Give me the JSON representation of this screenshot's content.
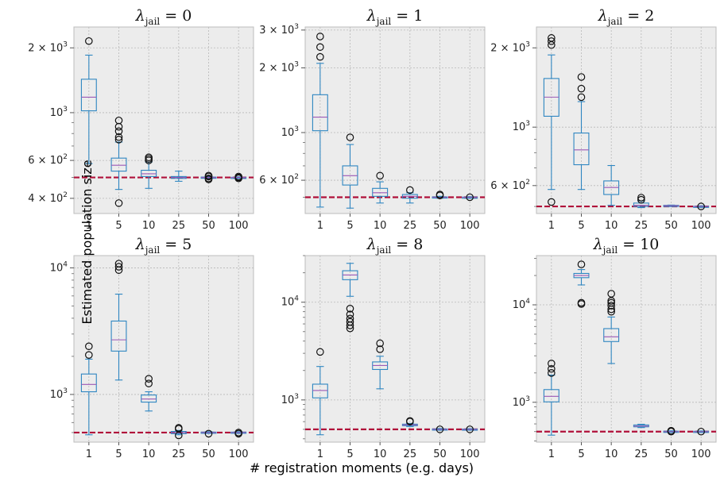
{
  "figure": {
    "ylabel": "Estimated population size",
    "xlabel": "# registration moments (e.g. days)"
  },
  "chart_data": [
    {
      "type": "box",
      "title": "λ_jail = 0",
      "title_main": "λ",
      "title_sub": "jail",
      "title_rest": " = 0",
      "categories": [
        "1",
        "5",
        "10",
        "25",
        "50",
        "100"
      ],
      "yscale": "log",
      "ylim": [
        340,
        2500
      ],
      "yticks": [
        {
          "v": 400,
          "m": "4 × 10",
          "e": "2"
        },
        {
          "v": 600,
          "m": "6 × 10",
          "e": "2"
        },
        {
          "v": 1000,
          "m": "10",
          "e": "3"
        },
        {
          "v": 2000,
          "m": "2 × 10",
          "e": "3"
        }
      ],
      "reference_line": 500,
      "boxes": [
        {
          "q1": 1020,
          "median": 1180,
          "q3": 1430,
          "wlo": 580,
          "whi": 1850,
          "fliers": [
            2150
          ]
        },
        {
          "q1": 535,
          "median": 570,
          "q3": 615,
          "wlo": 440,
          "whi": 730,
          "fliers": [
            380,
            750,
            770,
            820,
            860,
            920
          ]
        },
        {
          "q1": 505,
          "median": 520,
          "q3": 540,
          "wlo": 445,
          "whi": 590,
          "fliers": [
            600,
            610,
            620
          ]
        },
        {
          "q1": 495,
          "median": 500,
          "q3": 505,
          "wlo": 480,
          "whi": 535,
          "fliers": []
        },
        {
          "q1": 498,
          "median": 500,
          "q3": 502,
          "wlo": 495,
          "whi": 505,
          "fliers": [
            490,
            495,
            505,
            510
          ]
        },
        {
          "q1": 499,
          "median": 500,
          "q3": 501,
          "wlo": 497,
          "whi": 503,
          "fliers": [
            495,
            500,
            505
          ]
        }
      ]
    },
    {
      "type": "box",
      "title": "λ_jail = 1",
      "title_main": "λ",
      "title_sub": "jail",
      "title_rest": " = 1",
      "categories": [
        "1",
        "5",
        "10",
        "25",
        "50",
        "100"
      ],
      "yscale": "log",
      "ylim": [
        420,
        3100
      ],
      "yticks": [
        {
          "v": 600,
          "m": "6 × 10",
          "e": "2"
        },
        {
          "v": 1000,
          "m": "10",
          "e": "3"
        },
        {
          "v": 2000,
          "m": "2 × 10",
          "e": "3"
        },
        {
          "v": 3000,
          "m": "3 × 10",
          "e": "3"
        }
      ],
      "reference_line": 500,
      "boxes": [
        {
          "q1": 1020,
          "median": 1180,
          "q3": 1500,
          "wlo": 450,
          "whi": 2100,
          "fliers": [
            2250,
            2500,
            2800
          ]
        },
        {
          "q1": 570,
          "median": 630,
          "q3": 700,
          "wlo": 445,
          "whi": 880,
          "fliers": [
            950
          ]
        },
        {
          "q1": 505,
          "median": 525,
          "q3": 550,
          "wlo": 470,
          "whi": 590,
          "fliers": [
            630
          ]
        },
        {
          "q1": 495,
          "median": 505,
          "q3": 515,
          "wlo": 470,
          "whi": 525,
          "fliers": [
            540
          ]
        },
        {
          "q1": 498,
          "median": 500,
          "q3": 502,
          "wlo": 495,
          "whi": 505,
          "fliers": [
            510,
            515
          ]
        },
        {
          "q1": 499,
          "median": 500,
          "q3": 501,
          "wlo": 497,
          "whi": 503,
          "fliers": [
            500
          ]
        }
      ]
    },
    {
      "type": "box",
      "title": "λ_jail = 2",
      "title_main": "λ",
      "title_sub": "jail",
      "title_rest": " = 2",
      "categories": [
        "1",
        "5",
        "10",
        "25",
        "50",
        "100"
      ],
      "yscale": "log",
      "ylim": [
        470,
        2400
      ],
      "yticks": [
        {
          "v": 600,
          "m": "6 × 10",
          "e": "2"
        },
        {
          "v": 1000,
          "m": "10",
          "e": "3"
        },
        {
          "v": 2000,
          "m": "2 × 10",
          "e": "3"
        }
      ],
      "reference_line": 500,
      "boxes": [
        {
          "q1": 1100,
          "median": 1300,
          "q3": 1530,
          "wlo": 580,
          "whi": 1880,
          "fliers": [
            520,
            2050,
            2120,
            2180
          ]
        },
        {
          "q1": 720,
          "median": 820,
          "q3": 950,
          "wlo": 580,
          "whi": 1250,
          "fliers": [
            1300,
            1400,
            1550
          ]
        },
        {
          "q1": 555,
          "median": 590,
          "q3": 625,
          "wlo": 505,
          "whi": 715,
          "fliers": []
        },
        {
          "q1": 500,
          "median": 505,
          "q3": 515,
          "wlo": 495,
          "whi": 525,
          "fliers": [
            530,
            540
          ]
        },
        {
          "q1": 502,
          "median": 503,
          "q3": 505,
          "wlo": 500,
          "whi": 506,
          "fliers": []
        },
        {
          "q1": 499,
          "median": 500,
          "q3": 501,
          "wlo": 497,
          "whi": 503,
          "fliers": [
            500
          ]
        }
      ]
    },
    {
      "type": "box",
      "title": "λ_jail = 5",
      "title_main": "λ",
      "title_sub": "jail",
      "title_rest": " = 5",
      "categories": [
        "1",
        "5",
        "10",
        "25",
        "50",
        "100"
      ],
      "yscale": "log",
      "ylim": [
        420,
        12500
      ],
      "yticks": [
        {
          "v": 1000,
          "m": "10",
          "e": "3"
        },
        {
          "v": 10000,
          "m": "10",
          "e": "4"
        }
      ],
      "reference_line": 500,
      "boxes": [
        {
          "q1": 1050,
          "median": 1200,
          "q3": 1450,
          "wlo": 480,
          "whi": 1900,
          "fliers": [
            2050,
            2400
          ]
        },
        {
          "q1": 2200,
          "median": 2700,
          "q3": 3800,
          "wlo": 1300,
          "whi": 6200,
          "fliers": [
            9600,
            10200,
            10800
          ]
        },
        {
          "q1": 870,
          "median": 920,
          "q3": 990,
          "wlo": 740,
          "whi": 1050,
          "fliers": [
            1220,
            1330
          ]
        },
        {
          "q1": 490,
          "median": 500,
          "q3": 510,
          "wlo": 480,
          "whi": 520,
          "fliers": [
            475,
            535,
            545
          ]
        },
        {
          "q1": 496,
          "median": 500,
          "q3": 504,
          "wlo": 492,
          "whi": 508,
          "fliers": [
            490
          ]
        },
        {
          "q1": 496,
          "median": 500,
          "q3": 504,
          "wlo": 492,
          "whi": 508,
          "fliers": [
            490,
            500
          ]
        }
      ]
    },
    {
      "type": "box",
      "title": "λ_jail = 8",
      "title_main": "λ",
      "title_sub": "jail",
      "title_rest": " = 8",
      "categories": [
        "1",
        "5",
        "10",
        "25",
        "50",
        "100"
      ],
      "yscale": "log",
      "ylim": [
        370,
        30000
      ],
      "yticks": [
        {
          "v": 1000,
          "m": "10",
          "e": "3"
        },
        {
          "v": 10000,
          "m": "10",
          "e": "4"
        }
      ],
      "reference_line": 500,
      "boxes": [
        {
          "q1": 1050,
          "median": 1250,
          "q3": 1450,
          "wlo": 440,
          "whi": 2200,
          "fliers": [
            3100
          ]
        },
        {
          "q1": 17000,
          "median": 19000,
          "q3": 21000,
          "wlo": 11500,
          "whi": 25000,
          "fliers": [
            5400,
            5800,
            6300,
            6800,
            7500,
            8600
          ]
        },
        {
          "q1": 2050,
          "median": 2250,
          "q3": 2450,
          "wlo": 1300,
          "whi": 2800,
          "fliers": [
            3300,
            3800
          ]
        },
        {
          "q1": 545,
          "median": 555,
          "q3": 565,
          "wlo": 535,
          "whi": 575,
          "fliers": [
            600,
            610
          ]
        },
        {
          "q1": 495,
          "median": 500,
          "q3": 505,
          "wlo": 490,
          "whi": 510,
          "fliers": [
            500
          ]
        },
        {
          "q1": 496,
          "median": 500,
          "q3": 504,
          "wlo": 492,
          "whi": 508,
          "fliers": [
            500
          ]
        }
      ]
    },
    {
      "type": "box",
      "title": "λ_jail = 10",
      "title_main": "λ",
      "title_sub": "jail",
      "title_rest": " = 10",
      "categories": [
        "1",
        "5",
        "10",
        "25",
        "50",
        "100"
      ],
      "yscale": "log",
      "ylim": [
        390,
        32000
      ],
      "yticks": [
        {
          "v": 1000,
          "m": "10",
          "e": "3"
        },
        {
          "v": 10000,
          "m": "10",
          "e": "4"
        }
      ],
      "reference_line": 500,
      "boxes": [
        {
          "q1": 1010,
          "median": 1150,
          "q3": 1350,
          "wlo": 460,
          "whi": 1900,
          "fliers": [
            2000,
            2200,
            2500
          ]
        },
        {
          "q1": 19000,
          "median": 20000,
          "q3": 21000,
          "wlo": 16000,
          "whi": 23000,
          "fliers": [
            10200,
            10500,
            26000
          ]
        },
        {
          "q1": 4200,
          "median": 4700,
          "q3": 5700,
          "wlo": 2500,
          "whi": 7500,
          "fliers": [
            8500,
            9000,
            9800,
            10500,
            11000,
            13000
          ]
        },
        {
          "q1": 560,
          "median": 570,
          "q3": 585,
          "wlo": 550,
          "whi": 595,
          "fliers": []
        },
        {
          "q1": 495,
          "median": 500,
          "q3": 505,
          "wlo": 490,
          "whi": 510,
          "fliers": [
            500,
            510
          ]
        },
        {
          "q1": 496,
          "median": 500,
          "q3": 504,
          "wlo": 492,
          "whi": 508,
          "fliers": [
            500
          ]
        }
      ]
    }
  ]
}
